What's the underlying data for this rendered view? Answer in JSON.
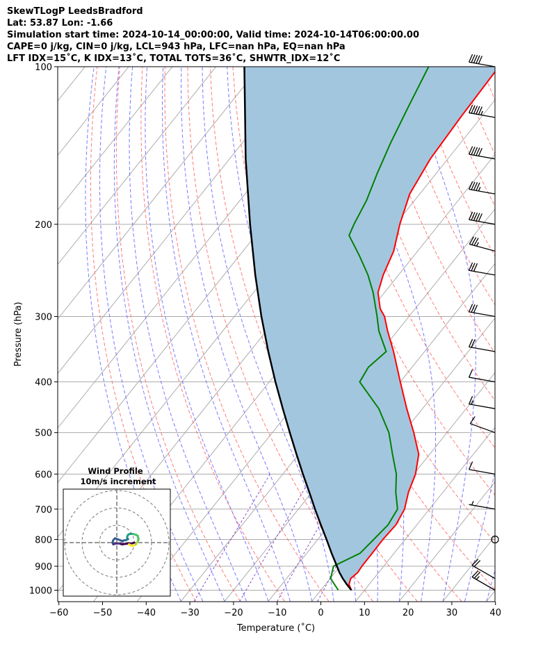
{
  "header": {
    "line1": "SkewTLogP LeedsBradford",
    "line2": "Lat: 53.87   Lon: -1.66",
    "line3": "Simulation start time: 2024-10-14_00:00:00, Valid time: 2024-10-14T06:00:00.00",
    "line4": "CAPE=0 j/kg, CIN=0 j/kg, LCL=943 hPa, LFC=nan hPa, EQ=nan hPa",
    "line5": "LFT IDX=15˚C, K IDX=13˚C, TOTAL TOTS=36˚C, SHWTR_IDX=12˚C"
  },
  "colors": {
    "temperature": "#ff0000",
    "dewpoint": "#008000",
    "parcel": "#000000",
    "cape_fill": "#a3c6df",
    "dry_adiabats": "#ff6b6b",
    "moist_adiabats": "#6b6bff",
    "isotherms": "#aaaaaa",
    "mixing_ratio": "#8844cc"
  },
  "chart_data": {
    "type": "line",
    "xlabel": "Temperature (˚C)",
    "ylabel": "Pressure (hPa)",
    "xlim": [
      -60,
      40
    ],
    "ylim": [
      1050,
      100
    ],
    "yscale": "log",
    "grid": true,
    "x_ticks": [
      -60,
      -50,
      -40,
      -30,
      -20,
      -10,
      0,
      10,
      20,
      30,
      40
    ],
    "x_tick_labels": [
      "−60",
      "−50",
      "−40",
      "−30",
      "−20",
      "−10",
      "0",
      "10",
      "20",
      "30",
      "40"
    ],
    "y_ticks": [
      1000,
      900,
      800,
      700,
      600,
      500,
      400,
      300,
      200,
      100
    ],
    "y_tick_labels": [
      "1000",
      "900",
      "800",
      "700",
      "600",
      "500",
      "400",
      "300",
      "200",
      "100"
    ],
    "series": [
      {
        "role": "temperature",
        "pressure": [
          1000,
          975,
          950,
          925,
          900,
          850,
          800,
          750,
          700,
          650,
          600,
          550,
          500,
          450,
          400,
          350,
          320,
          300,
          290,
          270,
          250,
          225,
          200,
          175,
          150,
          125,
          100
        ],
        "values": [
          7,
          5.4,
          4.7,
          5.2,
          5.0,
          5.0,
          4.9,
          5.2,
          4.3,
          2.1,
          0.4,
          -2.5,
          -7.6,
          -13.6,
          -20.0,
          -27.1,
          -32.2,
          -35.6,
          -38.0,
          -41.5,
          -43.5,
          -45.5,
          -49.0,
          -52.3,
          -54.0,
          -54.7,
          -55.2
        ]
      },
      {
        "role": "dewpoint",
        "pressure": [
          1000,
          950,
          900,
          850,
          800,
          750,
          700,
          650,
          600,
          550,
          500,
          450,
          400,
          375,
          350,
          320,
          300,
          270,
          250,
          230,
          210,
          200,
          180,
          160,
          140,
          120,
          100
        ],
        "values": [
          4,
          0.1,
          -1.5,
          2.2,
          2.8,
          3.4,
          2.7,
          -0.8,
          -4.0,
          -8.5,
          -13.3,
          -20.0,
          -29.3,
          -30.0,
          -28.8,
          -34.2,
          -37.3,
          -42.6,
          -47.0,
          -52.4,
          -58.6,
          -59.5,
          -61.0,
          -63.5,
          -66.0,
          -68.5,
          -71.3
        ]
      },
      {
        "role": "parcel",
        "pressure": [
          1000,
          975,
          950,
          925,
          900,
          850,
          800,
          750,
          700,
          650,
          600,
          550,
          500,
          450,
          400,
          350,
          300,
          250,
          200,
          150,
          100
        ],
        "values": [
          7,
          4.9,
          2.9,
          1.0,
          -0.7,
          -4.3,
          -8.0,
          -12.0,
          -16.2,
          -20.6,
          -25.4,
          -30.5,
          -36.0,
          -42.0,
          -48.6,
          -55.8,
          -63.8,
          -72.8,
          -83.3,
          -96.3,
          -113.5
        ]
      }
    ],
    "wind_barbs": {
      "pressure": [
        1000,
        950,
        800,
        700,
        600,
        500,
        450,
        400,
        350,
        300,
        250,
        225,
        200,
        175,
        150,
        125,
        100
      ],
      "speed_kt": [
        25,
        20,
        0,
        5,
        10,
        10,
        15,
        10,
        20,
        30,
        30,
        35,
        50,
        45,
        50,
        55,
        50
      ],
      "direction_deg": [
        300,
        300,
        0,
        280,
        280,
        290,
        280,
        280,
        280,
        280,
        280,
        285,
        280,
        280,
        280,
        280,
        280
      ]
    },
    "wind_profile": {
      "title": "Wind Profile",
      "subtitle": "10m/s increment",
      "rings_ms": [
        10,
        20,
        30
      ],
      "u_ms": [
        20,
        17,
        13,
        6,
        3,
        -1,
        -4,
        -5,
        -4,
        -2,
        6,
        11,
        13,
        12,
        12,
        13,
        15,
        19,
        22,
        24,
        25,
        24,
        23,
        22,
        20,
        18,
        16,
        14
      ],
      "v_ms": [
        0,
        -1,
        -1,
        -2,
        -1,
        -1,
        -2,
        0,
        3,
        5,
        2,
        3,
        4,
        5,
        7,
        9,
        10,
        10,
        9,
        8,
        4,
        1,
        0,
        -2,
        -3,
        -4,
        -3,
        -2
      ]
    }
  }
}
